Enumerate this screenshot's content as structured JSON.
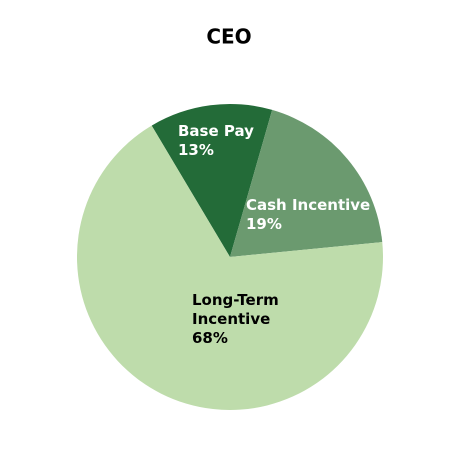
{
  "chart_data": {
    "type": "pie",
    "title": "CEO",
    "categories": [
      "Base Pay",
      "Cash Incentive",
      "Long-Term Incentive"
    ],
    "values": [
      13,
      19,
      68
    ],
    "value_labels": [
      "13%",
      "19%",
      "68%"
    ],
    "colors": [
      "#236b38",
      "#6b9a6f",
      "#bedcab"
    ]
  }
}
